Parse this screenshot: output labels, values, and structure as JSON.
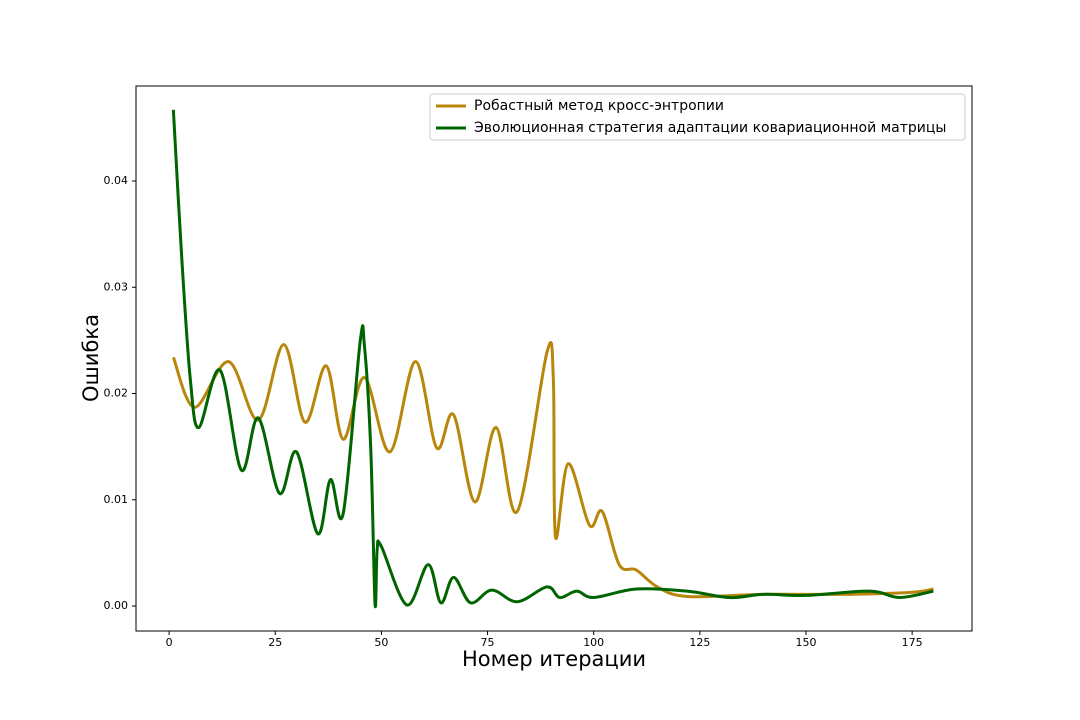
{
  "chart_data": {
    "type": "line",
    "x_label": "Номер итерации",
    "y_label": "Ошибка",
    "xlim": [
      -7.8,
      189.1
    ],
    "ylim": [
      -0.00235,
      0.04894
    ],
    "xticks": [
      0,
      25,
      50,
      75,
      100,
      125,
      150,
      175
    ],
    "yticks": [
      {
        "value": 0,
        "label": "0.00"
      },
      {
        "value": 0.01,
        "label": "0.01"
      },
      {
        "value": 0.02,
        "label": "0.02"
      },
      {
        "value": 0.03,
        "label": "0.03"
      },
      {
        "value": 0.04,
        "label": "0.04"
      }
    ],
    "legend": "upper right",
    "series": [
      {
        "name": "Робастный метод кросс-энтропии",
        "color": "#b8860b",
        "x": [
          1,
          6,
          14,
          21,
          27,
          32,
          37,
          41,
          46,
          52,
          58,
          63,
          67,
          72,
          77,
          82,
          89,
          90.5,
          91,
          94,
          99,
          102,
          106,
          110,
          115,
          122,
          140,
          160,
          175,
          180
        ],
        "values": [
          0.0234,
          0.0187,
          0.023,
          0.0175,
          0.0246,
          0.0173,
          0.0226,
          0.0157,
          0.0215,
          0.0145,
          0.023,
          0.0149,
          0.018,
          0.0098,
          0.0168,
          0.0089,
          0.0239,
          0.0213,
          0.0065,
          0.0134,
          0.0076,
          0.0089,
          0.0039,
          0.0034,
          0.0018,
          0.0009,
          0.0011,
          0.0011,
          0.0013,
          0.0016
        ]
      },
      {
        "name": "Эволюционная стратегия адаптации ковариационной матрицы",
        "color": "#006400",
        "x": [
          1,
          3,
          5,
          7,
          12,
          17,
          21,
          26,
          30,
          35,
          38,
          41,
          45,
          46,
          47.5,
          48.5,
          49,
          50,
          56,
          61,
          64,
          67,
          71,
          76,
          82,
          89,
          92,
          96,
          100,
          110,
          122,
          132,
          140,
          150,
          165,
          172,
          180
        ],
        "values": [
          0.0467,
          0.0326,
          0.0213,
          0.0168,
          0.0222,
          0.0128,
          0.0177,
          0.0106,
          0.0145,
          0.0068,
          0.0119,
          0.0087,
          0.0249,
          0.0245,
          0.0147,
          0.0002,
          0.0053,
          0.0056,
          0.0001,
          0.0039,
          0.0003,
          0.0027,
          0.0003,
          0.0015,
          0.0004,
          0.0018,
          0.0008,
          0.0014,
          0.0008,
          0.0016,
          0.0014,
          0.0008,
          0.0011,
          0.001,
          0.0014,
          0.0008,
          0.0014
        ]
      }
    ]
  }
}
